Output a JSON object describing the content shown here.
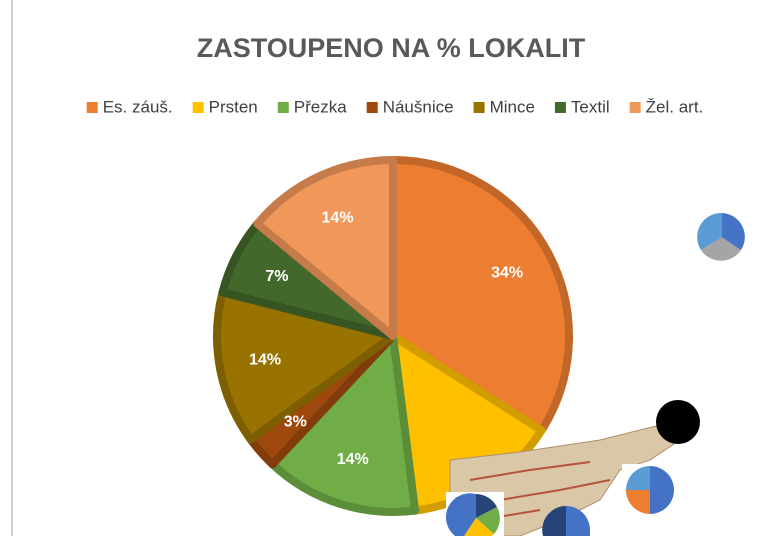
{
  "chart_data": {
    "type": "pie",
    "title": "ZASTOUPENO NA % LOKALIT",
    "categories": [
      "Es. záuš.",
      "Prsten",
      "Přezka",
      "Náušnice",
      "Mince",
      "Textil",
      "Žel. art."
    ],
    "values": [
      34,
      14,
      14,
      3,
      14,
      7,
      14
    ],
    "value_labels": [
      "34%",
      null,
      "14%",
      "3%",
      "14%",
      "7%",
      "14%"
    ],
    "colors": [
      "#ed7d31",
      "#ffc000",
      "#70ad47",
      "#9e480e",
      "#997300",
      "#43682b",
      "#f1975a"
    ],
    "legend": "top"
  }
}
